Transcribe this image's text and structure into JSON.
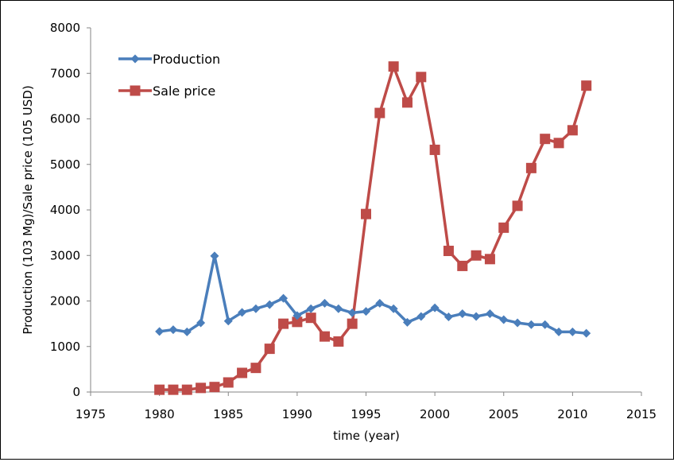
{
  "chart_data": {
    "type": "line",
    "title": "",
    "xlabel": "time (year)",
    "ylabel": "Production (103 Mg)/Sale price (105 USD)",
    "xlim": [
      1975,
      2015
    ],
    "ylim": [
      0,
      8000
    ],
    "xticks": [
      1975,
      1980,
      1985,
      1990,
      1995,
      2000,
      2005,
      2010,
      2015
    ],
    "yticks": [
      0,
      1000,
      2000,
      3000,
      4000,
      5000,
      6000,
      7000,
      8000
    ],
    "grid": false,
    "legend_position": "top-left",
    "x": [
      1980,
      1981,
      1982,
      1983,
      1984,
      1985,
      1986,
      1987,
      1988,
      1989,
      1990,
      1991,
      1992,
      1993,
      1994,
      1995,
      1996,
      1997,
      1998,
      1999,
      2000,
      2001,
      2002,
      2003,
      2004,
      2005,
      2006,
      2007,
      2008,
      2009,
      2010,
      2011
    ],
    "series": [
      {
        "name": "Production",
        "color": "#4a7ebb",
        "marker": "diamond",
        "values": [
          1330,
          1370,
          1320,
          1520,
          2990,
          1560,
          1750,
          1830,
          1920,
          2060,
          1680,
          1830,
          1950,
          1830,
          1740,
          1770,
          1950,
          1830,
          1530,
          1660,
          1850,
          1650,
          1720,
          1660,
          1720,
          1590,
          1520,
          1480,
          1480,
          1320,
          1320,
          1290
        ]
      },
      {
        "name": "Sale price",
        "color": "#be4b48",
        "marker": "square",
        "values": [
          50,
          50,
          50,
          90,
          110,
          210,
          420,
          530,
          950,
          1500,
          1540,
          1630,
          1220,
          1110,
          1500,
          3910,
          6130,
          7150,
          6360,
          6920,
          5320,
          3100,
          2770,
          3000,
          2920,
          3610,
          4090,
          4920,
          5560,
          5470,
          5750,
          6730
        ]
      }
    ]
  }
}
